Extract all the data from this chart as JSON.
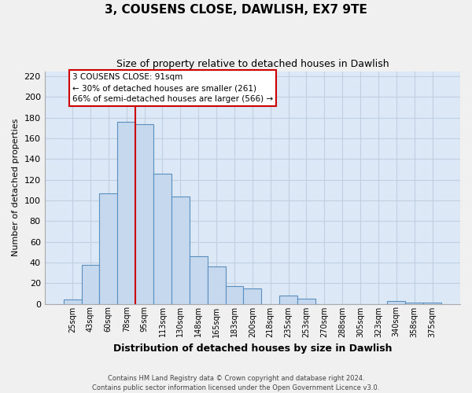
{
  "title": "3, COUSENS CLOSE, DAWLISH, EX7 9TE",
  "subtitle": "Size of property relative to detached houses in Dawlish",
  "xlabel": "Distribution of detached houses by size in Dawlish",
  "ylabel": "Number of detached properties",
  "bar_labels": [
    "25sqm",
    "43sqm",
    "60sqm",
    "78sqm",
    "95sqm",
    "113sqm",
    "130sqm",
    "148sqm",
    "165sqm",
    "183sqm",
    "200sqm",
    "218sqm",
    "235sqm",
    "253sqm",
    "270sqm",
    "288sqm",
    "305sqm",
    "323sqm",
    "340sqm",
    "358sqm",
    "375sqm"
  ],
  "bar_values": [
    4,
    38,
    107,
    176,
    174,
    126,
    104,
    46,
    36,
    17,
    15,
    0,
    8,
    5,
    0,
    0,
    0,
    0,
    3,
    1,
    1
  ],
  "bar_color": "#c5d8ee",
  "bar_edge_color": "#5a8fc0",
  "vline_color": "#cc0000",
  "vline_index": 3.5,
  "annotation_title": "3 COUSENS CLOSE: 91sqm",
  "annotation_line1": "← 30% of detached houses are smaller (261)",
  "annotation_line2": "66% of semi-detached houses are larger (566) →",
  "annotation_box_color": "#ffffff",
  "annotation_box_edge": "#cc0000",
  "footer_line1": "Contains HM Land Registry data © Crown copyright and database right 2024.",
  "footer_line2": "Contains public sector information licensed under the Open Government Licence v3.0.",
  "ylim": [
    0,
    225
  ],
  "yticks": [
    0,
    20,
    40,
    60,
    80,
    100,
    120,
    140,
    160,
    180,
    200,
    220
  ],
  "grid_color": "#c0d0e0",
  "bg_color": "#dce8f5",
  "fig_bg_color": "#f0f0f0",
  "title_fontsize": 11,
  "subtitle_fontsize": 9
}
